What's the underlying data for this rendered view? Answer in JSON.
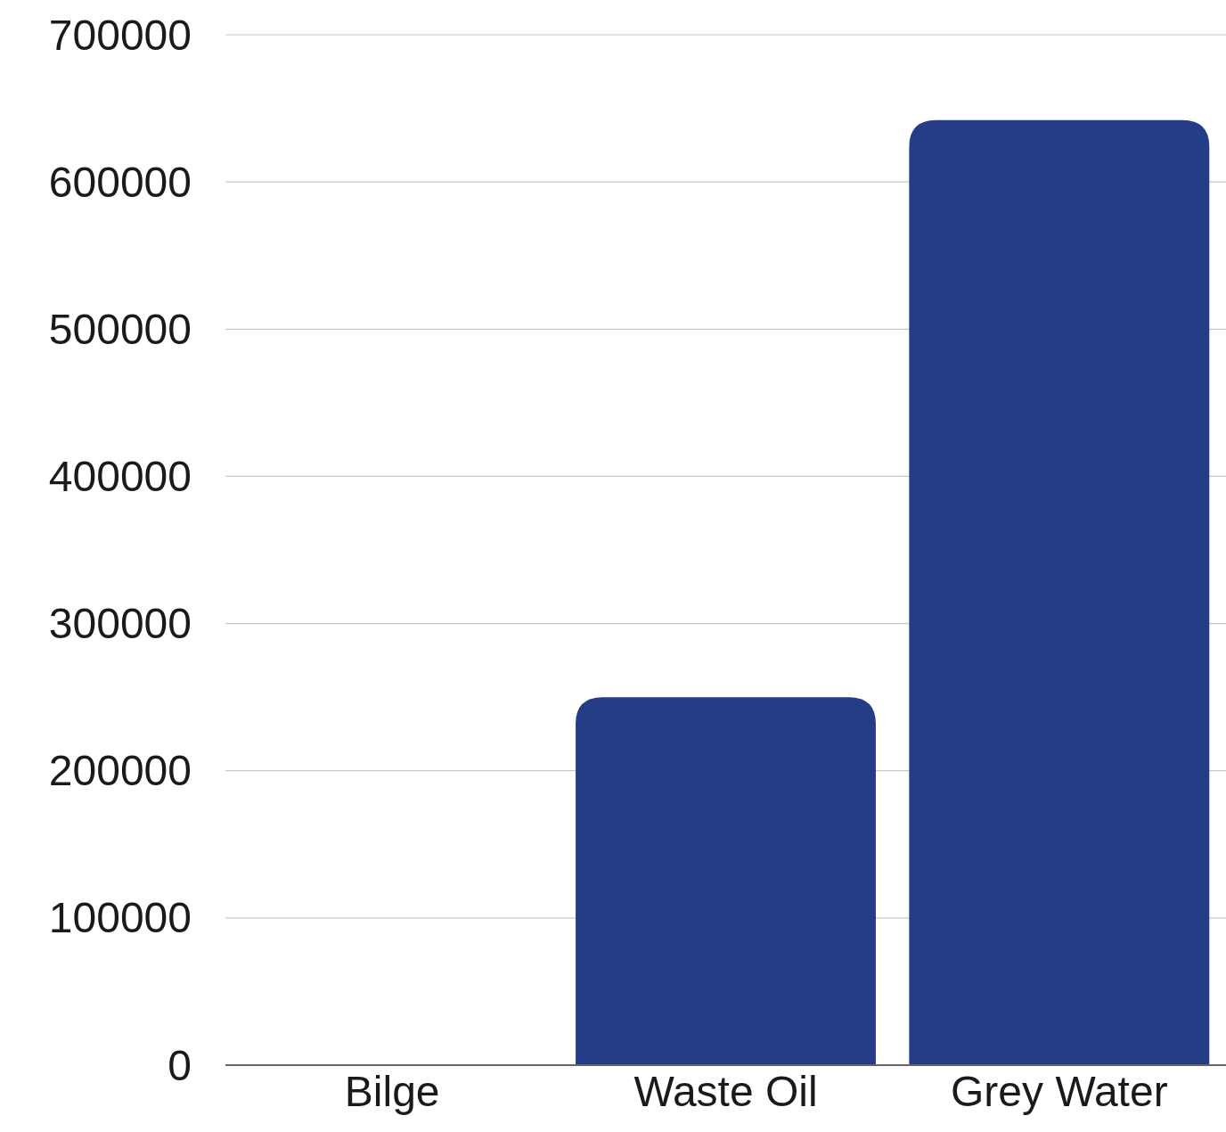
{
  "chart_data": {
    "type": "bar",
    "categories": [
      "Bilge",
      "Waste Oil",
      "Grey Water"
    ],
    "values": [
      0,
      250000,
      642000
    ],
    "color": "#253d87",
    "ylim": [
      0,
      700000
    ],
    "yticks": [
      0,
      100000,
      200000,
      300000,
      400000,
      500000,
      600000,
      700000
    ],
    "grid": "y"
  }
}
